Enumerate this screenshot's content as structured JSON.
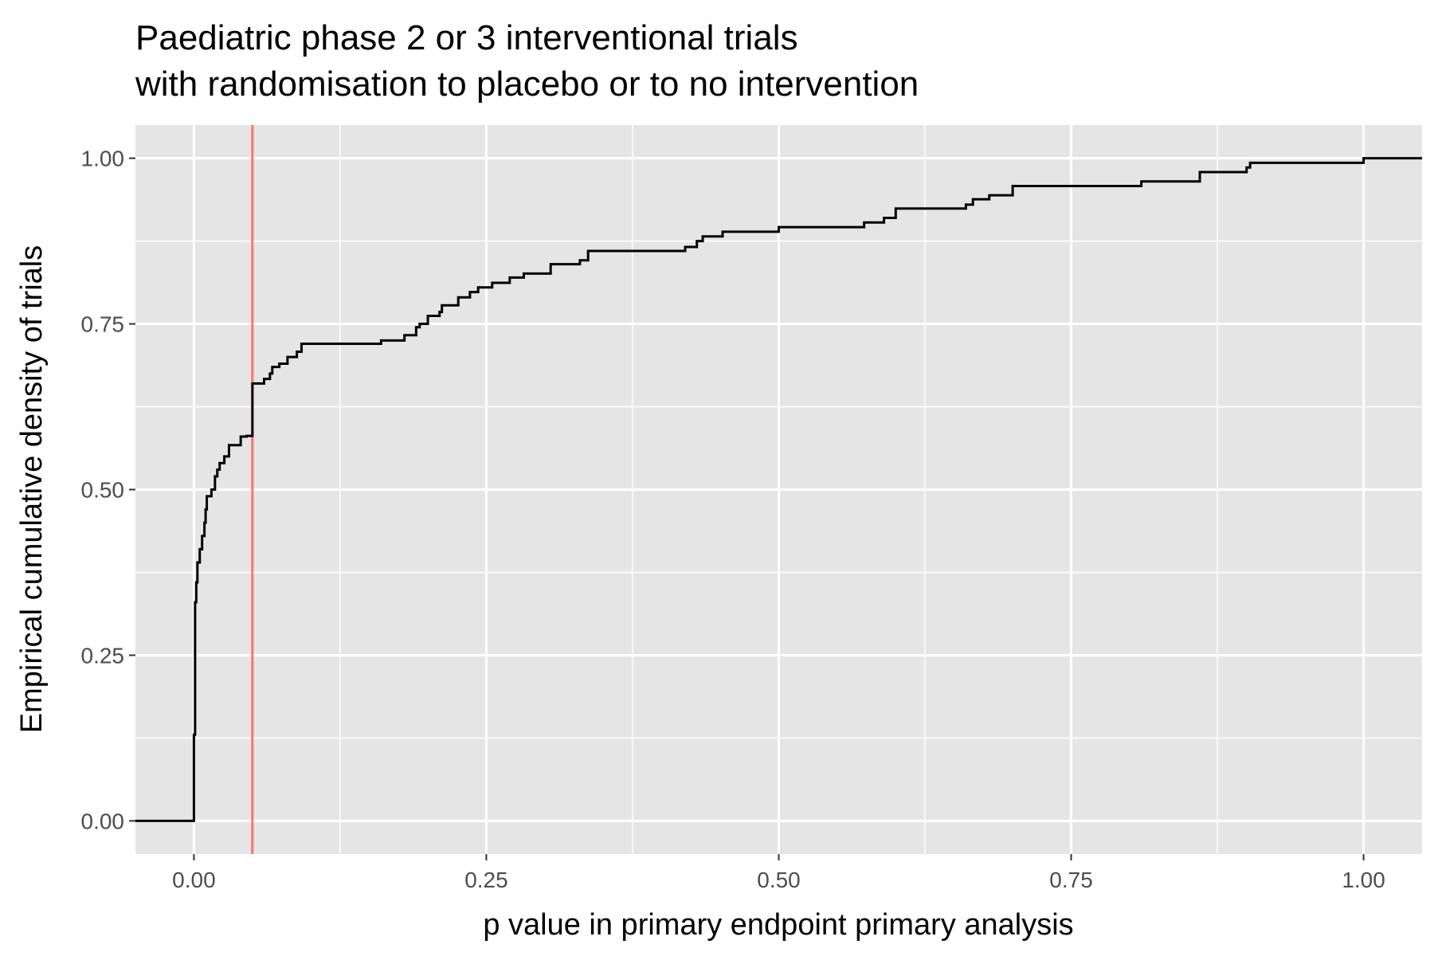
{
  "chart_data": {
    "type": "line",
    "step": true,
    "title": [
      "Paediatric phase 2 or 3 interventional trials",
      "with randomisation to placebo or to no intervention"
    ],
    "xlabel": "p value in primary endpoint primary analysis",
    "ylabel": "Empirical cumulative density of trials",
    "xlim": [
      -0.05,
      1.05
    ],
    "ylim": [
      -0.05,
      1.05
    ],
    "x_ticks": [
      0,
      0.25,
      0.5,
      0.75,
      1
    ],
    "x_tick_labels": [
      "0.00",
      "0.25",
      "0.50",
      "0.75",
      "1.00"
    ],
    "y_ticks": [
      0,
      0.25,
      0.5,
      0.75,
      1
    ],
    "y_tick_labels": [
      "0.00",
      "0.25",
      "0.50",
      "0.75",
      "1.00"
    ],
    "grid": true,
    "panel_background": "#e5e5e5",
    "reference_line": {
      "x": 0.05,
      "color": "#f8766d"
    },
    "series": [
      {
        "color": "#000000",
        "points": [
          [
            -0.05,
            0.0
          ],
          [
            0.0,
            0.0
          ],
          [
            0.0,
            0.13
          ],
          [
            0.001,
            0.33
          ],
          [
            0.002,
            0.36
          ],
          [
            0.003,
            0.39
          ],
          [
            0.005,
            0.41
          ],
          [
            0.007,
            0.43
          ],
          [
            0.009,
            0.45
          ],
          [
            0.01,
            0.47
          ],
          [
            0.011,
            0.49
          ],
          [
            0.015,
            0.5
          ],
          [
            0.018,
            0.52
          ],
          [
            0.02,
            0.53
          ],
          [
            0.022,
            0.54
          ],
          [
            0.026,
            0.55
          ],
          [
            0.03,
            0.567
          ],
          [
            0.04,
            0.57
          ],
          [
            0.04,
            0.58
          ],
          [
            0.045,
            0.581
          ],
          [
            0.05,
            0.6
          ],
          [
            0.05,
            0.66
          ],
          [
            0.06,
            0.667
          ],
          [
            0.065,
            0.675
          ],
          [
            0.067,
            0.685
          ],
          [
            0.073,
            0.69
          ],
          [
            0.08,
            0.7
          ],
          [
            0.088,
            0.708
          ],
          [
            0.092,
            0.72
          ],
          [
            0.16,
            0.72
          ],
          [
            0.16,
            0.725
          ],
          [
            0.18,
            0.733
          ],
          [
            0.19,
            0.745
          ],
          [
            0.193,
            0.75
          ],
          [
            0.2,
            0.762
          ],
          [
            0.21,
            0.768
          ],
          [
            0.212,
            0.778
          ],
          [
            0.226,
            0.79
          ],
          [
            0.236,
            0.798
          ],
          [
            0.243,
            0.805
          ],
          [
            0.255,
            0.812
          ],
          [
            0.27,
            0.82
          ],
          [
            0.282,
            0.826
          ],
          [
            0.305,
            0.84
          ],
          [
            0.33,
            0.846
          ],
          [
            0.337,
            0.86
          ],
          [
            0.42,
            0.86
          ],
          [
            0.42,
            0.866
          ],
          [
            0.43,
            0.875
          ],
          [
            0.435,
            0.882
          ],
          [
            0.452,
            0.889
          ],
          [
            0.5,
            0.896
          ],
          [
            0.573,
            0.903
          ],
          [
            0.59,
            0.91
          ],
          [
            0.6,
            0.924
          ],
          [
            0.66,
            0.93
          ],
          [
            0.666,
            0.938
          ],
          [
            0.68,
            0.944
          ],
          [
            0.7,
            0.958
          ],
          [
            0.81,
            0.958
          ],
          [
            0.81,
            0.965
          ],
          [
            0.86,
            0.979
          ],
          [
            0.9,
            0.986
          ],
          [
            0.903,
            0.993
          ],
          [
            1.0,
            1.0
          ],
          [
            1.05,
            1.0
          ]
        ]
      }
    ]
  }
}
